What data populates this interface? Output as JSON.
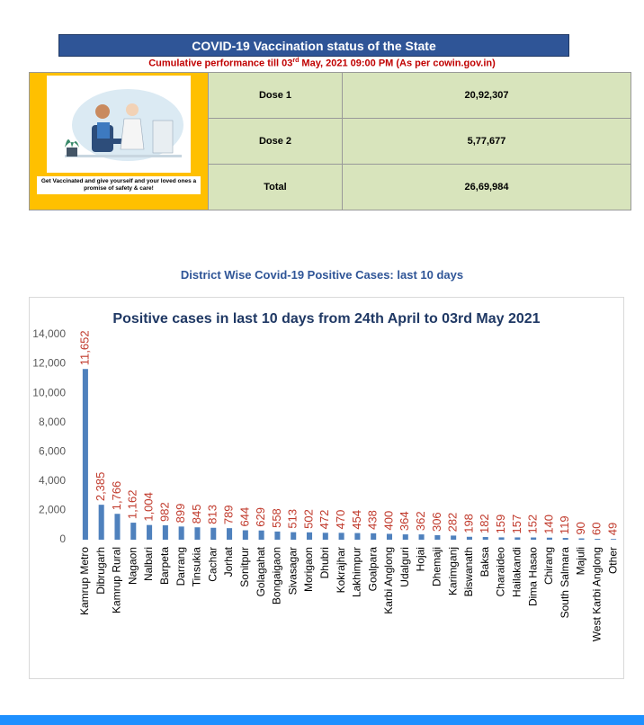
{
  "header": {
    "title": "COVID-19 Vaccination status of the State",
    "subtitle": [
      "Cumulative performance till 03",
      "rd",
      " May, 2021 09:00 PM (As per cowin.gov.in)"
    ]
  },
  "banner": {
    "caption": "Get Vaccinated and give yourself and your loved ones a promise of safety & care!"
  },
  "table": {
    "rows": [
      [
        "Dose 1",
        "20,92,307"
      ],
      [
        "Dose 2",
        "5,77,677"
      ],
      [
        "Total",
        "26,69,984"
      ]
    ]
  },
  "section_title": "District Wise Covid-19 Positive Cases: last 10 days",
  "chart_data": {
    "type": "bar",
    "title": "Positive cases in last 10 days from 24th April to 03rd May 2021",
    "categories": [
      "Kamrup Metro",
      "Dibrugarh",
      "Kamrup Rural",
      "Nagaon",
      "Nalbari",
      "Barpeta",
      "Darrang",
      "Tinsukia",
      "Cachar",
      "Jorhat",
      "Sonitpur",
      "Golagahat",
      "Bongaigaon",
      "Sivasagar",
      "Morigaon",
      "Dhubri",
      "Kokrajhar",
      "Lakhimpur",
      "Goalpara",
      "Karbi Anglong",
      "Udalguri",
      "Hojai",
      "Dhemaji",
      "Karimganj",
      "Biswanath",
      "Baksa",
      "Charaideo",
      "Hailakandi",
      "Dima Hasao",
      "Chirang",
      "South Salmara",
      "Majuli",
      "West Karbi Anglong",
      "Other"
    ],
    "values": [
      11652,
      2385,
      1766,
      1162,
      1004,
      982,
      899,
      845,
      813,
      789,
      644,
      629,
      558,
      513,
      502,
      472,
      470,
      454,
      438,
      400,
      364,
      362,
      306,
      282,
      198,
      182,
      159,
      157,
      152,
      140,
      119,
      90,
      60,
      49
    ],
    "value_labels": [
      "11,652",
      "2,385",
      "1,766",
      "1,162",
      "1,004",
      "982",
      "899",
      "845",
      "813",
      "789",
      "644",
      "629",
      "558",
      "513",
      "502",
      "472",
      "470",
      "454",
      "438",
      "400",
      "364",
      "362",
      "306",
      "282",
      "198",
      "182",
      "159",
      "157",
      "152",
      "140",
      "119",
      "90",
      "60",
      "49"
    ],
    "color": "#4f81bd",
    "label_color": "#c0392b",
    "ylim": [
      0,
      14000
    ],
    "yticks": [
      0,
      {
        "value": 2000,
        "label": "2,000"
      },
      {
        "value": 4000,
        "label": "4,000"
      },
      {
        "value": 6000,
        "label": "6,000"
      },
      {
        "value": 8000,
        "label": "8,000"
      },
      {
        "value": 10000,
        "label": "10,000"
      },
      {
        "value": 12000,
        "label": "12,000"
      },
      {
        "value": 14000,
        "label": "14,000"
      }
    ],
    "grid": false
  }
}
